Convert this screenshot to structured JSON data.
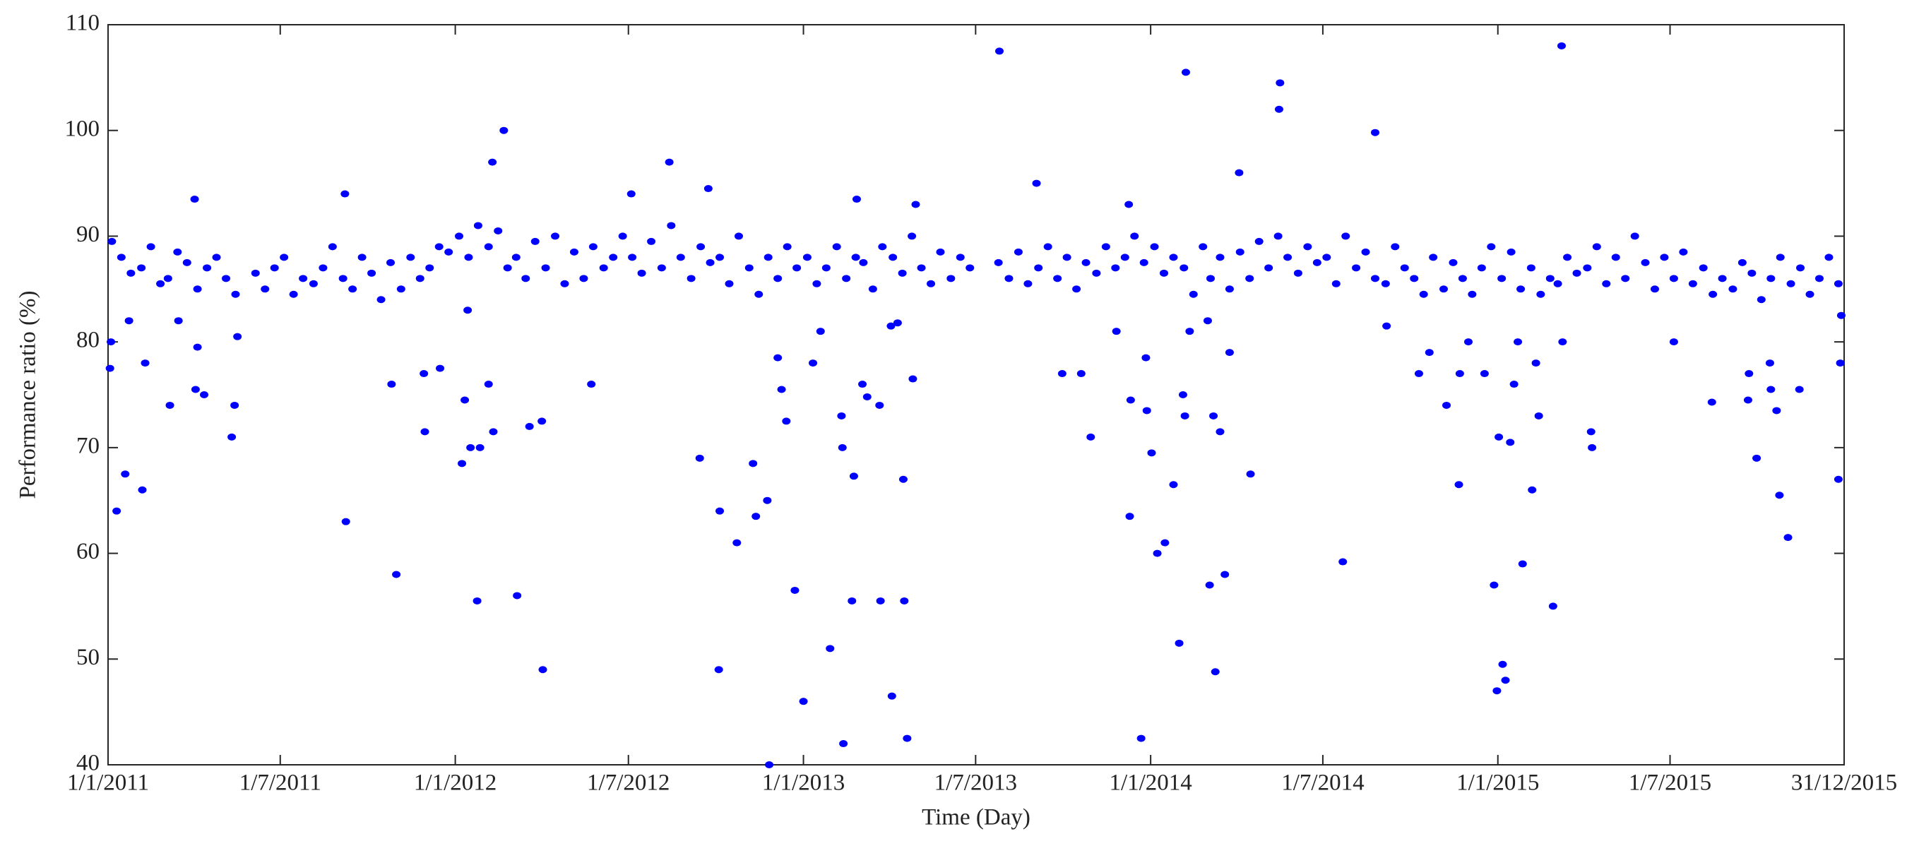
{
  "chart_data": {
    "type": "scatter",
    "xlabel": "Time (Day)",
    "ylabel": "Performance ratio (%)",
    "color": "#0000ff",
    "xlim": [
      "1/1/2011",
      "31/12/2015"
    ],
    "xticks": [
      "1/1/2011",
      "1/7/2011",
      "1/1/2012",
      "1/7/2012",
      "1/1/2013",
      "1/7/2013",
      "1/1/2014",
      "1/7/2014",
      "1/1/2015",
      "1/7/2015",
      "31/12/2015"
    ],
    "ylim": [
      40,
      110
    ],
    "yticks": [
      40,
      50,
      60,
      70,
      80,
      90,
      100,
      110
    ],
    "x": [
      "5/1/2011",
      "15/1/2011",
      "25/1/2011",
      "5/2/2011",
      "15/2/2011",
      "25/2/2011",
      "5/3/2011",
      "15/3/2011",
      "25/3/2011",
      "5/4/2011",
      "15/4/2011",
      "25/4/2011",
      "5/5/2011",
      "15/5/2011",
      "5/6/2011",
      "15/6/2011",
      "25/6/2011",
      "5/7/2011",
      "15/7/2011",
      "25/7/2011",
      "5/8/2011",
      "15/8/2011",
      "25/8/2011",
      "5/9/2011",
      "15/9/2011",
      "25/9/2011",
      "5/10/2011",
      "15/10/2011",
      "25/10/2011",
      "5/11/2011",
      "15/11/2011",
      "25/11/2011",
      "5/12/2011",
      "15/12/2011",
      "25/12/2011",
      "5/1/2012",
      "15/1/2012",
      "25/1/2012",
      "5/2/2012",
      "15/2/2012",
      "25/2/2012",
      "5/3/2012",
      "15/3/2012",
      "25/3/2012",
      "5/4/2012",
      "15/4/2012",
      "25/4/2012",
      "5/5/2012",
      "15/5/2012",
      "25/5/2012",
      "5/6/2012",
      "15/6/2012",
      "25/6/2012",
      "5/7/2012",
      "15/7/2012",
      "25/7/2012",
      "5/8/2012",
      "15/8/2012",
      "25/8/2012",
      "5/9/2012",
      "15/9/2012",
      "25/9/2012",
      "5/10/2012",
      "15/10/2012",
      "25/10/2012",
      "5/11/2012",
      "15/11/2012",
      "25/11/2012",
      "5/12/2012",
      "15/12/2012",
      "25/12/2012",
      "5/1/2013",
      "15/1/2013",
      "25/1/2013",
      "5/2/2013",
      "15/2/2013",
      "25/2/2013",
      "5/3/2013",
      "15/3/2013",
      "25/3/2013",
      "5/4/2013",
      "15/4/2013",
      "25/4/2013",
      "5/5/2013",
      "15/5/2013",
      "25/5/2013",
      "5/6/2013",
      "15/6/2013",
      "25/6/2013",
      "25/7/2013",
      "5/8/2013",
      "15/8/2013",
      "25/8/2013",
      "5/9/2013",
      "15/9/2013",
      "25/9/2013",
      "5/10/2013",
      "15/10/2013",
      "25/10/2013",
      "5/11/2013",
      "15/11/2013",
      "25/11/2013",
      "5/12/2013",
      "15/12/2013",
      "25/12/2013",
      "5/1/2014",
      "15/1/2014",
      "25/1/2014",
      "5/2/2014",
      "15/2/2014",
      "25/2/2014",
      "5/3/2014",
      "15/3/2014",
      "25/3/2014",
      "5/4/2014",
      "15/4/2014",
      "25/4/2014",
      "5/5/2014",
      "15/5/2014",
      "25/5/2014",
      "5/6/2014",
      "15/6/2014",
      "25/6/2014",
      "5/7/2014",
      "15/7/2014",
      "25/7/2014",
      "5/8/2014",
      "15/8/2014",
      "25/8/2014",
      "5/9/2014",
      "15/9/2014",
      "25/9/2014",
      "5/10/2014",
      "15/10/2014",
      "25/10/2014",
      "5/11/2014",
      "15/11/2014",
      "25/11/2014",
      "5/12/2014",
      "15/12/2014",
      "25/12/2014",
      "5/1/2015",
      "15/1/2015",
      "25/1/2015",
      "5/2/2015",
      "15/2/2015",
      "25/2/2015",
      "5/3/2015",
      "15/3/2015",
      "25/3/2015",
      "5/4/2015",
      "15/4/2015",
      "25/4/2015",
      "5/5/2015",
      "15/5/2015",
      "25/5/2015",
      "5/6/2015",
      "15/6/2015",
      "25/6/2015",
      "5/7/2015",
      "15/7/2015",
      "25/7/2015",
      "5/8/2015",
      "15/8/2015",
      "25/8/2015",
      "5/9/2015",
      "15/9/2015",
      "25/9/2015",
      "5/10/2015",
      "15/10/2015",
      "25/10/2015",
      "5/11/2015",
      "15/11/2015",
      "25/11/2015",
      "5/12/2015",
      "15/12/2015",
      "25/12/2015",
      "4/1/2011",
      "3/1/2011",
      "10/1/2011",
      "19/1/2011",
      "23/1/2011",
      "6/2/2011",
      "9/2/2011",
      "7/3/2011",
      "16/3/2011",
      "2/4/2011",
      "5/4/2011",
      "3/4/2011",
      "12/4/2011",
      "11/5/2011",
      "14/5/2011",
      "17/5/2011",
      "8/9/2011",
      "7/9/2011",
      "26/10/2011",
      "31/10/2011",
      "30/11/2011",
      "29/11/2011",
      "16/12/2011",
      "8/1/2012",
      "11/1/2012",
      "14/1/2012",
      "17/1/2012",
      "24/1/2012",
      "27/1/2012",
      "5/2/2012",
      "10/2/2012",
      "9/2/2012",
      "21/2/2012",
      "6/3/2012",
      "19/3/2012",
      "1/4/2012",
      "2/4/2012",
      "23/5/2012",
      "4/7/2012",
      "13/8/2012",
      "14/9/2012",
      "23/9/2012",
      "4/10/2012",
      "5/10/2012",
      "23/10/2012",
      "9/11/2012",
      "12/11/2012",
      "24/11/2012",
      "26/11/2012",
      "5/12/2012",
      "9/12/2012",
      "14/12/2012",
      "23/12/2012",
      "1/1/2013",
      "11/1/2013",
      "19/1/2013",
      "29/1/2013",
      "10/2/2013",
      "11/2/2013",
      "12/2/2013",
      "21/2/2013",
      "23/2/2013",
      "26/2/2013",
      "4/3/2013",
      "9/3/2013",
      "22/3/2013",
      "23/3/2013",
      "3/4/2013",
      "4/4/2013",
      "10/4/2013",
      "17/4/2013",
      "16/4/2013",
      "20/4/2013",
      "26/4/2013",
      "29/4/2013",
      "26/7/2013",
      "3/9/2013",
      "30/9/2013",
      "20/10/2013",
      "30/10/2013",
      "26/11/2013",
      "10/12/2013",
      "11/12/2013",
      "9/12/2013",
      "22/12/2013",
      "27/12/2013",
      "28/12/2013",
      "2/1/2014",
      "8/1/2014",
      "16/1/2014",
      "25/1/2014",
      "31/1/2014",
      "4/2/2014",
      "6/2/2014",
      "7/2/2014",
      "11/2/2014",
      "2/3/2014",
      "4/3/2014",
      "8/3/2014",
      "10/3/2014",
      "15/3/2014",
      "20/3/2014",
      "25/3/2014",
      "4/4/2014",
      "16/4/2014",
      "16/5/2014",
      "17/5/2014",
      "22/7/2014",
      "25/8/2014",
      "6/9/2014",
      "10/10/2014",
      "21/10/2014",
      "8/11/2014",
      "21/11/2014",
      "22/11/2014",
      "1/12/2014",
      "18/12/2014",
      "28/12/2014",
      "31/12/2014",
      "2/1/2015",
      "6/1/2015",
      "9/1/2015",
      "14/1/2015",
      "18/1/2015",
      "22/1/2015",
      "27/1/2015",
      "6/2/2015",
      "13/2/2015",
      "10/2/2015",
      "28/2/2015",
      "9/3/2015",
      "10/3/2015",
      "9/4/2015",
      "10/4/2015",
      "5/7/2015",
      "14/8/2015",
      "21/9/2015",
      "22/9/2015",
      "30/9/2015",
      "14/10/2015",
      "15/10/2015",
      "21/10/2015",
      "24/10/2015",
      "2/11/2015",
      "14/11/2015",
      "25/12/2015",
      "27/12/2015",
      "28/12/2015"
    ],
    "values": [
      89.5,
      88,
      86.5,
      87,
      89,
      85.5,
      86,
      88.5,
      87.5,
      85,
      87,
      88,
      86,
      84.5,
      86.5,
      85,
      87,
      88,
      84.5,
      86,
      85.5,
      87,
      89,
      86,
      85,
      88,
      86.5,
      84,
      87.5,
      85,
      88,
      86,
      87,
      89,
      88.5,
      90,
      88,
      91,
      89,
      90.5,
      87,
      88,
      86,
      89.5,
      87,
      90,
      85.5,
      88.5,
      86,
      89,
      87,
      88,
      90,
      88,
      86.5,
      89.5,
      87,
      91,
      88,
      86,
      89,
      87.5,
      88,
      85.5,
      90,
      87,
      84.5,
      88,
      86,
      89,
      87,
      88,
      85.5,
      87,
      89,
      86,
      88,
      87.5,
      85,
      89,
      88,
      86.5,
      90,
      87,
      85.5,
      88.5,
      86,
      88,
      87,
      87.5,
      86,
      88.5,
      85.5,
      87,
      89,
      86,
      88,
      85,
      87.5,
      86.5,
      89,
      87,
      88,
      90,
      87.5,
      89,
      86.5,
      88,
      87,
      84.5,
      89,
      86,
      88,
      85,
      88.5,
      86,
      89.5,
      87,
      90,
      88,
      86.5,
      89,
      87.5,
      88,
      85.5,
      90,
      87,
      88.5,
      86,
      85.5,
      89,
      87,
      86,
      84.5,
      88,
      85,
      87.5,
      86,
      84.5,
      87,
      89,
      86,
      88.5,
      85,
      87,
      84.5,
      86,
      85.5,
      88,
      86.5,
      87,
      89,
      85.5,
      88,
      86,
      90,
      87.5,
      85,
      88,
      86,
      88.5,
      85.5,
      87,
      84.5,
      86,
      85,
      87.5,
      86.5,
      84,
      86,
      88,
      85.5,
      87,
      84.5,
      86,
      88,
      85.5,
      80,
      77.5,
      64,
      67.5,
      82,
      66,
      78,
      74,
      82,
      93.5,
      79.5,
      75.5,
      75,
      71,
      74,
      80.5,
      63,
      94,
      76,
      58,
      71.5,
      77,
      77.5,
      68.5,
      74.5,
      83,
      70,
      55.5,
      70,
      76,
      71.5,
      97,
      100,
      56,
      72,
      72.5,
      49,
      76,
      94,
      97,
      69,
      94.5,
      49,
      64,
      61,
      68.5,
      63.5,
      65,
      40,
      78.5,
      75.5,
      72.5,
      56.5,
      46,
      78,
      81,
      51,
      73,
      70,
      42,
      55.5,
      67.3,
      93.5,
      76,
      74.8,
      74,
      55.5,
      81.5,
      46.5,
      81.8,
      55.5,
      67,
      42.5,
      76.5,
      93,
      107.5,
      95,
      77,
      77,
      71,
      81,
      63.5,
      74.5,
      93,
      42.5,
      78.5,
      73.5,
      69.5,
      60,
      61,
      66.5,
      51.5,
      75,
      73,
      105.5,
      81,
      82,
      57,
      73,
      48.8,
      71.5,
      58,
      79,
      96,
      67.5,
      102,
      104.5,
      59.2,
      99.8,
      81.5,
      77,
      79,
      74,
      66.5,
      77,
      80,
      77,
      57,
      47,
      71,
      49.5,
      48,
      70.5,
      76,
      80,
      59,
      66,
      73,
      78,
      55,
      108,
      80,
      71.5,
      70,
      80,
      74.3,
      74.5,
      77,
      69,
      78,
      75.5,
      73.5,
      65.5,
      61.5,
      75.5,
      67,
      78,
      82.5
    ]
  }
}
